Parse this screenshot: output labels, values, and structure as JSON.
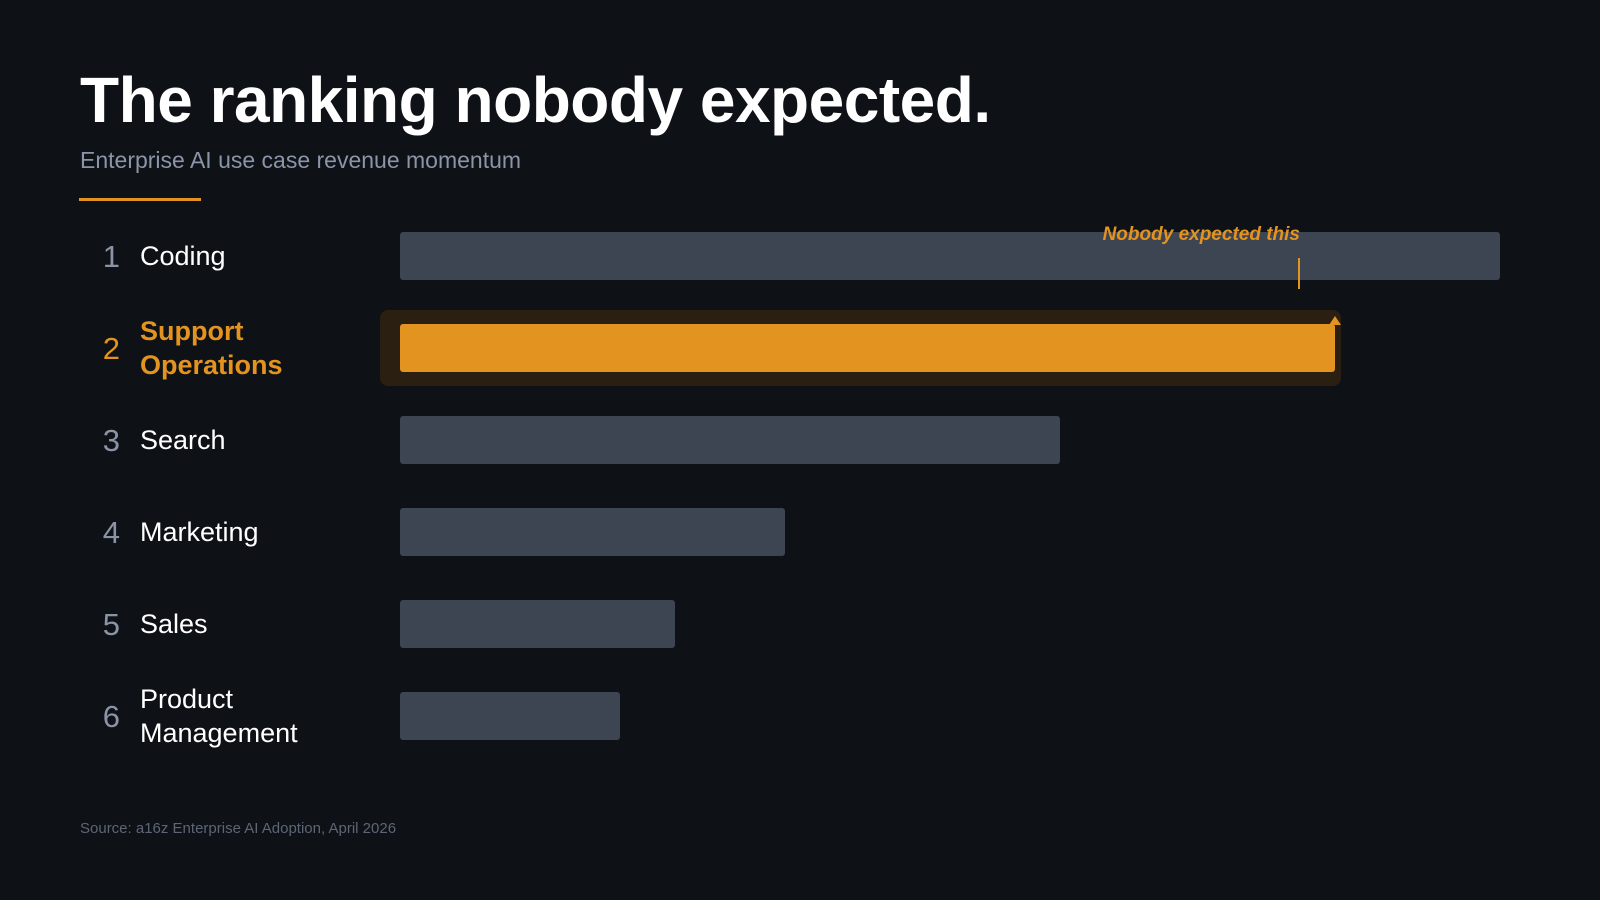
{
  "title": "The ranking nobody expected.",
  "subtitle": "Enterprise AI use case revenue momentum",
  "source": "Source: a16z Enterprise AI Adoption, April 2026",
  "colors": {
    "background": "#0e1116",
    "accent": "#e3931f",
    "bar_default": "#3d4452",
    "rank_default": "#8a94a6",
    "label_default": "#ffffff",
    "highlight_backdrop": "#2a1f10"
  },
  "chart_data": {
    "type": "bar",
    "orientation": "horizontal",
    "ranks": [
      "1",
      "2",
      "3",
      "4",
      "5",
      "6"
    ],
    "categories": [
      "Coding",
      "Support Operations",
      "Search",
      "Marketing",
      "Sales",
      "Product Management"
    ],
    "category_lines": [
      [
        "Coding"
      ],
      [
        "Support",
        "Operations"
      ],
      [
        "Search"
      ],
      [
        "Marketing"
      ],
      [
        "Sales"
      ],
      [
        "Product",
        "Management"
      ]
    ],
    "values": [
      100,
      85,
      60,
      35,
      25,
      20
    ],
    "value_scale": "relative, axis unlabeled",
    "xlim": [
      0,
      100
    ],
    "highlight_index": 1,
    "annotation": {
      "text": "Nobody expected this",
      "target_index": 1
    },
    "grid": false,
    "legend": "none"
  }
}
